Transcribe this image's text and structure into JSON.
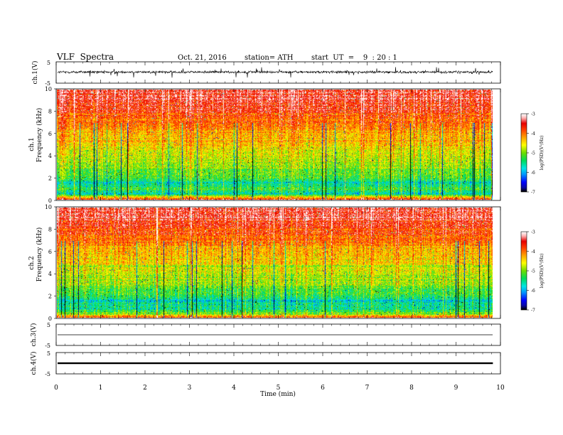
{
  "header": {
    "title": "VLF  Spectra",
    "date": "Oct. 21, 2016",
    "station": "station= ATH",
    "start": "start  UT  =    9  : 20 : 1"
  },
  "chart_data": [
    {
      "type": "line",
      "panel": "ch1-waveform",
      "ylabel": "ch.1(V)",
      "ylim": [
        -5,
        5
      ],
      "y_ticks": [
        "5",
        "-5"
      ],
      "baseline": 0.2,
      "amplitude_typical": 1.0,
      "amplitude_spikes": 2.5,
      "color": "#000000"
    },
    {
      "type": "heatmap",
      "panel": "ch1-spectrogram",
      "ylabel_top": "ch.1",
      "ylabel": "Frequency  (kHz)",
      "ylim": [
        0,
        10
      ],
      "y_ticks": [
        "0",
        "2",
        "4",
        "6",
        "8",
        "10"
      ],
      "x_end_min": 9.83,
      "colorbar": {
        "label": "log(PSD)(V²/Hz)",
        "ticks": [
          "-3",
          "-4",
          "-5",
          "-6",
          "-7"
        ],
        "range": [
          -7,
          -3
        ]
      },
      "level_profile_by_freq_khz": [
        {
          "f": 0.0,
          "level": -3.6
        },
        {
          "f": 0.5,
          "level": -5.6
        },
        {
          "f": 1.0,
          "level": -5.3
        },
        {
          "f": 1.5,
          "level": -5.6
        },
        {
          "f": 2.0,
          "level": -5.2
        },
        {
          "f": 3.0,
          "level": -4.9
        },
        {
          "f": 4.0,
          "level": -4.7
        },
        {
          "f": 5.0,
          "level": -4.5
        },
        {
          "f": 6.0,
          "level": -4.3
        },
        {
          "f": 7.0,
          "level": -4.0
        },
        {
          "f": 8.0,
          "level": -3.7
        },
        {
          "f": 9.0,
          "level": -3.5
        },
        {
          "f": 10.0,
          "level": -3.4
        }
      ]
    },
    {
      "type": "heatmap",
      "panel": "ch2-spectrogram",
      "ylabel_top": "ch.2",
      "ylabel": "Frequency  (kHz)",
      "ylim": [
        0,
        10
      ],
      "y_ticks": [
        "0",
        "2",
        "4",
        "6",
        "8",
        "10"
      ],
      "x_end_min": 9.83,
      "colorbar": {
        "label": "log(PSD)(V²/Hz)",
        "ticks": [
          "-3",
          "-4",
          "-5",
          "-6",
          "-7"
        ],
        "range": [
          -7,
          -3
        ]
      },
      "level_profile_by_freq_khz": [
        {
          "f": 0.0,
          "level": -3.8
        },
        {
          "f": 0.5,
          "level": -5.4
        },
        {
          "f": 1.0,
          "level": -5.5
        },
        {
          "f": 1.5,
          "level": -5.8
        },
        {
          "f": 2.0,
          "level": -5.2
        },
        {
          "f": 3.0,
          "level": -4.9
        },
        {
          "f": 4.0,
          "level": -4.8
        },
        {
          "f": 5.0,
          "level": -4.5
        },
        {
          "f": 6.0,
          "level": -4.3
        },
        {
          "f": 7.0,
          "level": -4.0
        },
        {
          "f": 8.0,
          "level": -3.8
        },
        {
          "f": 9.0,
          "level": -3.5
        },
        {
          "f": 10.0,
          "level": -3.4
        }
      ]
    },
    {
      "type": "line",
      "panel": "ch3-waveform",
      "ylabel": "ch.3(V)",
      "ylim": [
        -5,
        5
      ],
      "y_ticks": [
        "5",
        "-5"
      ],
      "baseline": 0.0,
      "color": "#000000"
    },
    {
      "type": "line",
      "panel": "ch4-waveform",
      "ylabel": "ch.4(V)",
      "ylim": [
        -5,
        5
      ],
      "y_ticks": [
        "5",
        "-5"
      ],
      "baseline": 0.0,
      "thickness_volts": 0.4,
      "color": "#000000"
    }
  ],
  "x_axis": {
    "label": "Time  (min)",
    "range": [
      0,
      10
    ],
    "ticks": [
      "0",
      "1",
      "2",
      "3",
      "4",
      "5",
      "6",
      "7",
      "8",
      "9",
      "10"
    ]
  },
  "colors": {
    "scale": [
      "#000000",
      "#0a0aa0",
      "#0000ff",
      "#0096ff",
      "#00e6e6",
      "#00dc5a",
      "#6edc00",
      "#ffff00",
      "#ffa000",
      "#ff3c00",
      "#e60000",
      "#ffb4b4",
      "#ffffff"
    ]
  }
}
